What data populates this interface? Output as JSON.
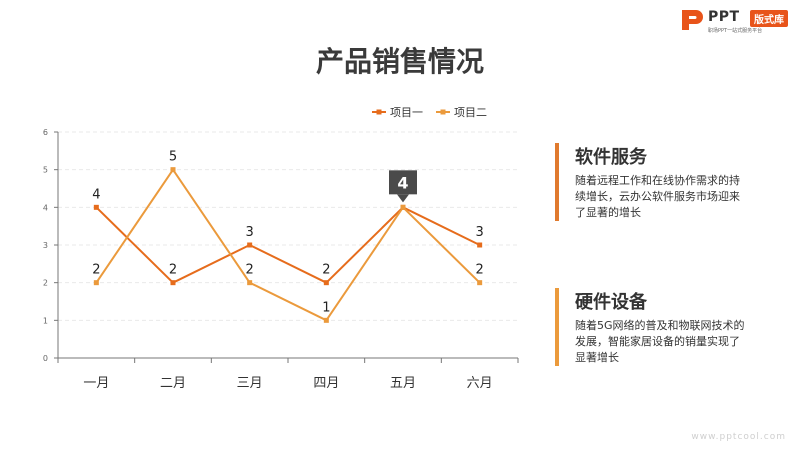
{
  "logo": {
    "text": "PPT",
    "badge": "版式库",
    "tagline": "职场PPT一站式服务平台",
    "color": "#e8541a"
  },
  "title": "产品销售情况",
  "chart_data": {
    "type": "line",
    "categories": [
      "一月",
      "二月",
      "三月",
      "四月",
      "五月",
      "六月"
    ],
    "series": [
      {
        "name": "项目一",
        "values": [
          4,
          2,
          3,
          2,
          4,
          3
        ],
        "color": "#e66c1c"
      },
      {
        "name": "项目二",
        "values": [
          2,
          5,
          2,
          1,
          4,
          2
        ],
        "color": "#eb9a3c"
      }
    ],
    "ylim": [
      0,
      6
    ],
    "yticks": [
      "0",
      "1",
      "2",
      "3",
      "4",
      "5",
      "6"
    ],
    "grid": true,
    "legend": "top-right",
    "callout": {
      "category": "五月",
      "value": "4"
    }
  },
  "panels": [
    {
      "title": "软件服务",
      "desc": "随着远程工作和在线协作需求的持续增长，云办公软件服务市场迎来了显著的增长",
      "color": "#e07a2e"
    },
    {
      "title": "硬件设备",
      "desc": "随着5G网络的普及和物联网技术的发展，智能家居设备的销量实现了显著增长",
      "color": "#eb9a3c"
    }
  ],
  "footer": "www.pptcool.com"
}
